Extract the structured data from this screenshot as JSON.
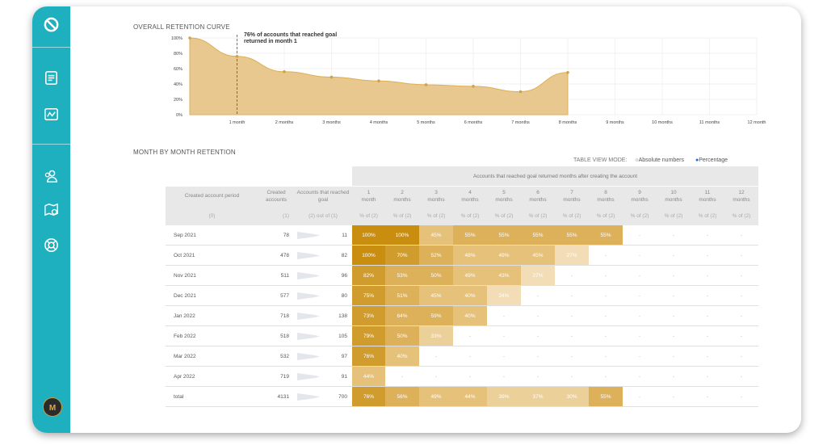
{
  "app": {
    "sidebar_icons": [
      "logo-icon",
      "document-icon",
      "analytics-icon",
      "users-icon",
      "map-icon",
      "help-ring-icon"
    ],
    "avatar_text": "M"
  },
  "curve": {
    "title": "OVERALL RETENTION CURVE",
    "annotation_line1": "76% of accounts that reached goal",
    "annotation_line2": "returned in month 1",
    "y_ticks": [
      "100%",
      "80%",
      "60%",
      "40%",
      "20%",
      "0%"
    ],
    "x_ticks": [
      "1 month",
      "2 months",
      "3 months",
      "4 months",
      "5 months",
      "6 months",
      "7 months",
      "8 months",
      "9 months",
      "10 months",
      "11 months",
      "12 month"
    ]
  },
  "chart_data": {
    "type": "area",
    "title": "OVERALL RETENTION CURVE",
    "x": [
      0,
      1,
      2,
      3,
      4,
      5,
      6,
      7,
      8
    ],
    "y": [
      100,
      76,
      56,
      49,
      44,
      39,
      37,
      30,
      55
    ],
    "ylim": [
      0,
      100
    ],
    "x_tick_labels": [
      "1 month",
      "2 months",
      "3 months",
      "4 months",
      "5 months",
      "6 months",
      "7 months",
      "8 months",
      "9 months",
      "10 months",
      "11 months",
      "12 month"
    ],
    "color": "#e8c88e"
  },
  "table": {
    "title": "MONTH BY MONTH RETENTION",
    "view_mode_label": "TABLE VIEW MODE:",
    "opt_absolute": "Absolute numbers",
    "opt_percentage": "Percentage",
    "group_header": "Accounts that reached goal returned months after creating the account",
    "h_period": "Created account period",
    "h_created": "Created accounts",
    "h_reached": "Accounts that reached goal",
    "month_headers": [
      "1 month",
      "2 months",
      "3 months",
      "4 months",
      "5 months",
      "6 months",
      "7 months",
      "8 months",
      "9 months",
      "10 months",
      "11 months",
      "12 months"
    ],
    "sub_period": "(0)",
    "sub_created": "(1)",
    "sub_reached": "(2) out of (1)",
    "sub_month": "% of (2)",
    "rows": [
      {
        "period": "Sep 2021",
        "created": "78",
        "reached": "11",
        "cells": [
          "100%",
          "100%",
          "45%",
          "55%",
          "55%",
          "55%",
          "55%",
          "55%",
          "-",
          "-",
          "-",
          "-"
        ]
      },
      {
        "period": "Oct 2021",
        "created": "478",
        "reached": "82",
        "cells": [
          "100%",
          "70%",
          "52%",
          "48%",
          "49%",
          "45%",
          "27%",
          "-",
          "-",
          "-",
          "-",
          "-"
        ]
      },
      {
        "period": "Nov 2021",
        "created": "511",
        "reached": "96",
        "cells": [
          "82%",
          "53%",
          "50%",
          "49%",
          "43%",
          "27%",
          "-",
          "-",
          "-",
          "-",
          "-",
          "-"
        ]
      },
      {
        "period": "Dec 2021",
        "created": "577",
        "reached": "80",
        "cells": [
          "75%",
          "51%",
          "45%",
          "40%",
          "24%",
          "-",
          "-",
          "-",
          "-",
          "-",
          "-",
          "-"
        ]
      },
      {
        "period": "Jan 2022",
        "created": "718",
        "reached": "138",
        "cells": [
          "73%",
          "64%",
          "59%",
          "40%",
          "-",
          "-",
          "-",
          "-",
          "-",
          "-",
          "-",
          "-"
        ]
      },
      {
        "period": "Feb 2022",
        "created": "518",
        "reached": "105",
        "cells": [
          "79%",
          "50%",
          "33%",
          "-",
          "-",
          "-",
          "-",
          "-",
          "-",
          "-",
          "-",
          "-"
        ]
      },
      {
        "period": "Mar 2022",
        "created": "532",
        "reached": "97",
        "cells": [
          "76%",
          "40%",
          "-",
          "-",
          "-",
          "-",
          "-",
          "-",
          "-",
          "-",
          "-",
          "-"
        ]
      },
      {
        "period": "Apr 2022",
        "created": "719",
        "reached": "91",
        "cells": [
          "44%",
          "-",
          "-",
          "-",
          "-",
          "-",
          "-",
          "-",
          "-",
          "-",
          "-",
          "-"
        ]
      },
      {
        "period": "total",
        "created": "4131",
        "reached": "700",
        "cells": [
          "76%",
          "56%",
          "49%",
          "44%",
          "39%",
          "37%",
          "30%",
          "55%",
          "-",
          "-",
          "-",
          "-"
        ]
      }
    ]
  }
}
